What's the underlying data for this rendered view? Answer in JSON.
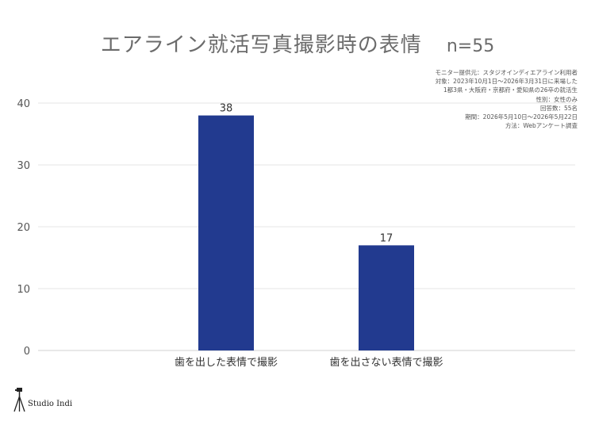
{
  "title": "エアライン就活写真撮影時の表情",
  "n_label": "n=55",
  "notes": [
    "モニター提供元：スタジオインディエアライン利用者",
    "対象：2023年10月1日〜2026年3月31日に来場した",
    "1都3県・大阪府・京都府・愛知県の26卒の就活生",
    "性別：女性のみ",
    "回答数：55名",
    "期間：2026年5月10日〜2026年5月22日",
    "方法：Webアンケート調査"
  ],
  "brand": {
    "name": "Studio Indi",
    "icon": "camera-tripod-icon"
  },
  "colors": {
    "bar": "#223a8f",
    "grid": "#e6e6e6",
    "axis": "#d0d0d0"
  },
  "chart_data": {
    "type": "bar",
    "categories": [
      "歯を出した表情で撮影",
      "歯を出さない表情で撮影"
    ],
    "values": [
      38,
      17
    ],
    "data_labels": [
      "38",
      "17"
    ],
    "ylim": [
      0,
      40
    ],
    "yticks": [
      0,
      10,
      20,
      30,
      40
    ],
    "ytick_labels": [
      "0",
      "10",
      "20",
      "30",
      "40"
    ],
    "grid": true,
    "legend": "none"
  }
}
